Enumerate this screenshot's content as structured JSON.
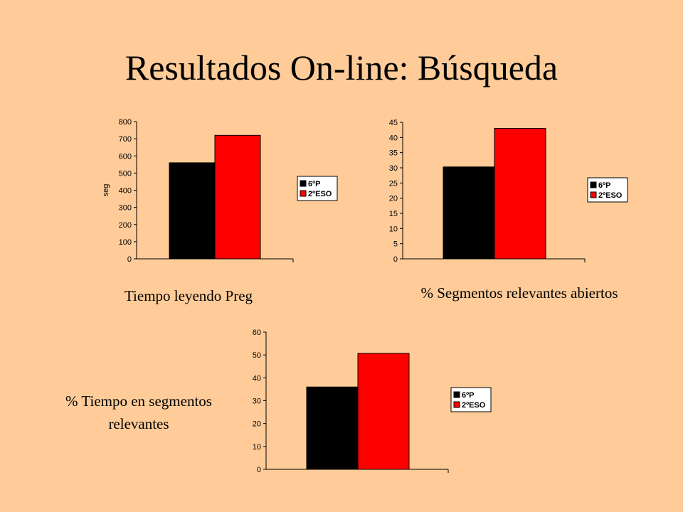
{
  "slide": {
    "title": "Resultados On-line: Búsqueda"
  },
  "captions": [
    "Tiempo leyendo Preg",
    "% Segmentos relevantes abiertos",
    "% Tiempo en segmentos relevantes"
  ],
  "colors": {
    "background": "#FFCC99",
    "series_6P": "#000000",
    "series_2ESO": "#FF0000"
  },
  "chart_data": [
    {
      "type": "bar",
      "title": "",
      "xlabel": "",
      "ylabel": "seg",
      "ylim": [
        0,
        800
      ],
      "ticks": [
        0,
        100,
        200,
        300,
        400,
        500,
        600,
        700,
        800
      ],
      "legend": "right",
      "grid": false,
      "series": [
        {
          "name": "6ºP",
          "values": [
            560
          ]
        },
        {
          "name": "2ºESO",
          "values": [
            720
          ]
        }
      ]
    },
    {
      "type": "bar",
      "title": "",
      "xlabel": "",
      "ylabel": "",
      "ylim": [
        0,
        45
      ],
      "ticks": [
        0,
        5,
        10,
        15,
        20,
        25,
        30,
        35,
        40,
        45
      ],
      "legend": "right",
      "grid": false,
      "series": [
        {
          "name": "6ºP",
          "values": [
            30.3
          ]
        },
        {
          "name": "2ºESO",
          "values": [
            43
          ]
        }
      ]
    },
    {
      "type": "bar",
      "title": "",
      "xlabel": "",
      "ylabel": "",
      "ylim": [
        0,
        60
      ],
      "ticks": [
        0,
        10,
        20,
        30,
        40,
        50,
        60
      ],
      "legend": "right",
      "grid": false,
      "series": [
        {
          "name": "6ºP",
          "values": [
            36
          ]
        },
        {
          "name": "2ºESO",
          "values": [
            50.7
          ]
        }
      ]
    }
  ]
}
